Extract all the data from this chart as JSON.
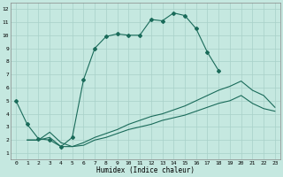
{
  "xlabel": "Humidex (Indice chaleur)",
  "bg_color": "#c5e8e0",
  "grid_color": "#a8d0c8",
  "line_color": "#1a6b5a",
  "xlim": [
    -0.5,
    23.5
  ],
  "ylim": [
    0.5,
    12.5
  ],
  "xticks": [
    0,
    1,
    2,
    3,
    4,
    5,
    6,
    7,
    8,
    9,
    10,
    11,
    12,
    13,
    14,
    15,
    16,
    17,
    18,
    19,
    20,
    21,
    22,
    23
  ],
  "yticks": [
    1,
    2,
    3,
    4,
    5,
    6,
    7,
    8,
    9,
    10,
    11,
    12
  ],
  "line1_x": [
    0,
    1,
    2,
    3,
    4,
    5,
    6,
    7,
    8,
    9,
    10,
    11,
    12,
    13,
    14,
    15,
    16,
    17,
    18
  ],
  "line1_y": [
    5.0,
    3.2,
    2.1,
    2.0,
    1.5,
    2.2,
    6.6,
    9.0,
    9.9,
    10.1,
    10.0,
    10.0,
    11.2,
    11.1,
    11.7,
    11.5,
    10.5,
    8.7,
    7.3
  ],
  "line2_x": [
    1,
    2,
    3,
    4,
    5,
    6,
    7,
    8,
    9,
    10,
    11,
    12,
    13,
    14,
    15,
    16,
    17,
    18,
    19,
    20,
    21,
    22,
    23
  ],
  "line2_y": [
    2.0,
    2.0,
    2.6,
    1.8,
    1.5,
    1.8,
    2.2,
    2.5,
    2.8,
    3.2,
    3.5,
    3.8,
    4.0,
    4.3,
    4.6,
    5.0,
    5.4,
    5.8,
    6.1,
    6.5,
    5.8,
    5.4,
    4.5
  ],
  "line3_x": [
    1,
    2,
    3,
    4,
    5,
    6,
    7,
    8,
    9,
    10,
    11,
    12,
    13,
    14,
    15,
    16,
    17,
    18,
    19,
    20,
    21,
    22,
    23
  ],
  "line3_y": [
    2.0,
    2.0,
    2.2,
    1.5,
    1.5,
    1.6,
    2.0,
    2.2,
    2.5,
    2.8,
    3.0,
    3.2,
    3.5,
    3.7,
    3.9,
    4.2,
    4.5,
    4.8,
    5.0,
    5.4,
    4.8,
    4.4,
    4.2
  ]
}
